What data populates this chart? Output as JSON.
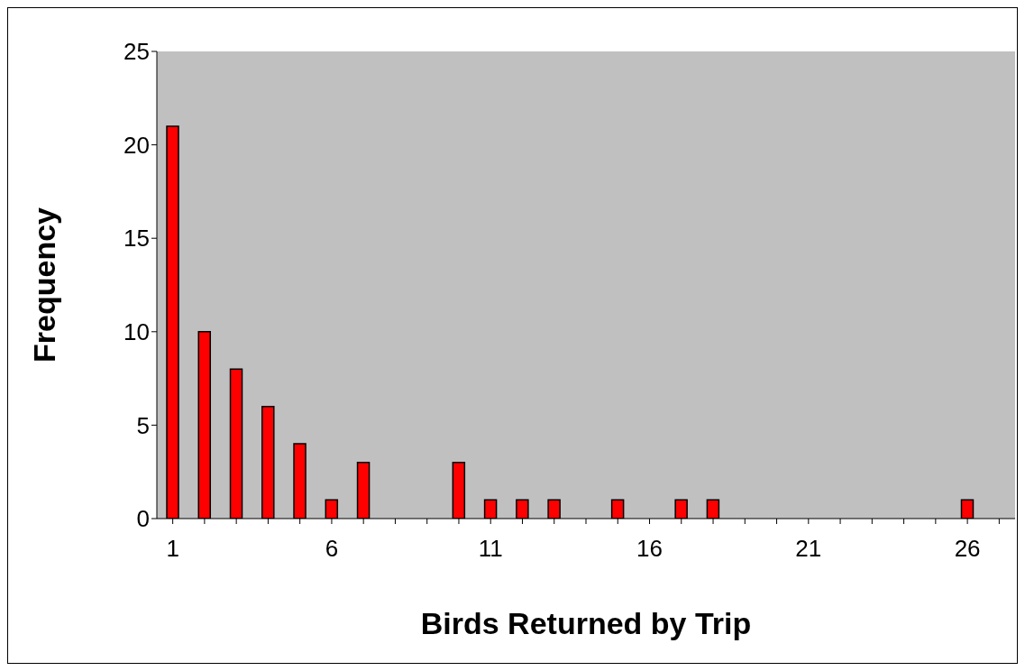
{
  "chart_data": {
    "type": "bar",
    "xlabel": "Birds Returned by Trip",
    "ylabel": "Frequency",
    "categories": [
      "1",
      null,
      null,
      null,
      null,
      "6",
      null,
      null,
      null,
      null,
      "11",
      null,
      null,
      null,
      null,
      "16",
      null,
      null,
      null,
      null,
      "21",
      null,
      null,
      null,
      null,
      "26",
      null
    ],
    "values": [
      21,
      10,
      8,
      6,
      4,
      1,
      3,
      0,
      0,
      3,
      1,
      1,
      1,
      0,
      1,
      0,
      1,
      1,
      0,
      0,
      0,
      0,
      0,
      0,
      0,
      1,
      0
    ],
    "color": "#ff0000",
    "ylim": [
      0,
      25
    ],
    "yticks": [
      0,
      5,
      10,
      15,
      20,
      25
    ],
    "grid": false
  }
}
